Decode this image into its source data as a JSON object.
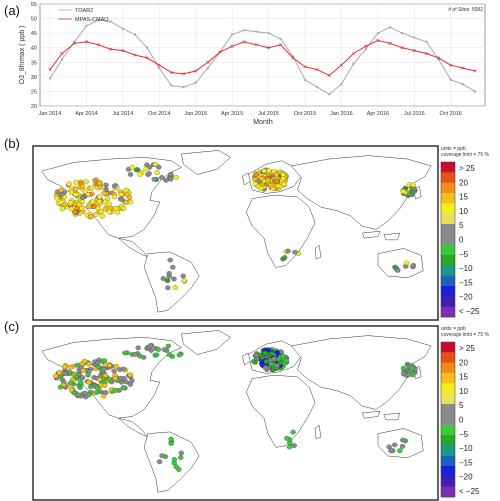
{
  "panels": {
    "a_label": "(a)",
    "b_label": "(b)",
    "c_label": "(c)"
  },
  "chart_data": [
    {
      "type": "line",
      "panel": "(a)",
      "ylabel": "O3_8hrmax ( ppb )",
      "xlabel": "Month",
      "annotation": "# of Sites: 5582",
      "ylim": [
        20,
        55
      ],
      "yticks": [
        20,
        25,
        30,
        35,
        40,
        45,
        50,
        55
      ],
      "x_tick_labels": [
        "Jan 2014",
        "Apr 2014",
        "Jul 2014",
        "Oct 2014",
        "Jan 2015",
        "Apr 2015",
        "Jul 2015",
        "Oct 2015",
        "Jan 2016",
        "Apr 2016",
        "Jul 2016",
        "Oct 2016"
      ],
      "x_tick_index": [
        0,
        3,
        6,
        9,
        12,
        15,
        18,
        21,
        24,
        27,
        30,
        33
      ],
      "grid": true,
      "legend_position": "top-left",
      "series": [
        {
          "name": "TOAR2",
          "color": "#aaaaaa",
          "values": [
            29.5,
            36,
            42,
            47.5,
            49.5,
            49,
            46.5,
            44.5,
            40,
            33,
            27,
            26.5,
            28,
            33,
            38.5,
            44.5,
            46,
            45.5,
            45,
            43,
            37,
            29,
            26.5,
            24,
            27.5,
            34.5,
            39.5,
            45,
            47,
            45,
            43.5,
            42,
            36,
            29,
            27.5,
            25
          ]
        },
        {
          "name": "MPAS-CMAQ",
          "color": "#e03030",
          "values": [
            32.5,
            38,
            41.5,
            42,
            41,
            39.5,
            39,
            37.5,
            36.5,
            34,
            31.5,
            31,
            32,
            35,
            38.5,
            40.5,
            42,
            41,
            40,
            41,
            36.5,
            33.5,
            32.5,
            30.5,
            34,
            38,
            40.5,
            42.5,
            41.5,
            40,
            39,
            38,
            36.5,
            34,
            33,
            32
          ]
        }
      ]
    },
    {
      "type": "scatter",
      "panel": "(b)",
      "title": "",
      "legend_note": [
        "units = ppb",
        "coverage limit = 75 %"
      ],
      "colorbar_labels": [
        "> 25",
        "20",
        "15",
        "10",
        "5",
        "0",
        "−5",
        "−10",
        "−15",
        "−20",
        "< −25"
      ],
      "colorbar_colors": [
        "#c8102e",
        "#e8501a",
        "#f08c18",
        "#f5c018",
        "#f7ec1c",
        "#e6e35a",
        "#8a8a8a",
        "#8a8a8a",
        "#3cc83c",
        "#2aa82a",
        "#1a9a8a",
        "#2060c0",
        "#1a20d8",
        "#4020b0",
        "#7a30b0"
      ]
    },
    {
      "type": "scatter",
      "panel": "(c)",
      "title": "",
      "legend_note": [
        "units = ppb",
        "coverage limit = 75 %"
      ],
      "colorbar_labels": [
        "> 25",
        "20",
        "15",
        "10",
        "5",
        "0",
        "−5",
        "−10",
        "−15",
        "−20",
        "< −25"
      ],
      "colorbar_colors": [
        "#c8102e",
        "#e8501a",
        "#f08c18",
        "#f5c018",
        "#f7ec1c",
        "#e6e35a",
        "#8a8a8a",
        "#8a8a8a",
        "#3cc83c",
        "#2aa82a",
        "#1a9a8a",
        "#2060c0",
        "#1a20d8",
        "#4020b0",
        "#7a30b0"
      ]
    }
  ]
}
